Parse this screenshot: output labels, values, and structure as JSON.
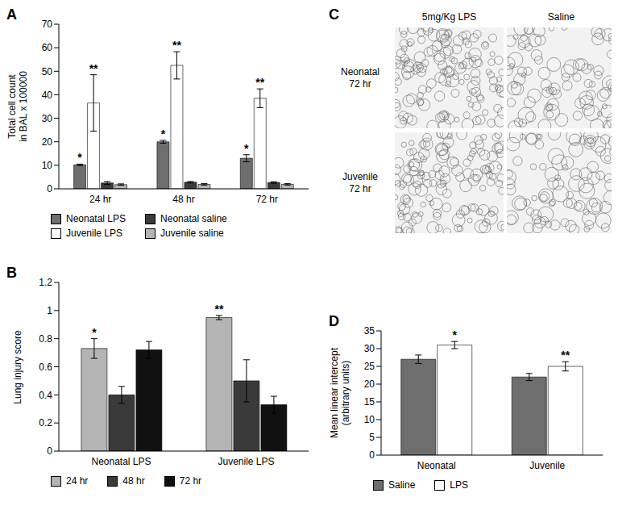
{
  "chart_data": [
    {
      "type": "bar",
      "title": "A",
      "y_label": "Total cell count in BAL x 100000",
      "categories": [
        "24 hr",
        "48 hr",
        "72 hr"
      ],
      "ylim": [
        0,
        70
      ],
      "yticks": [
        0,
        10,
        20,
        30,
        40,
        50,
        60,
        70
      ],
      "series": [
        {
          "name": "Neonatal LPS",
          "color": "#6e6e6e",
          "values": [
            10.2,
            20,
            13
          ],
          "errors": [
            0.3,
            0.6,
            1.5
          ],
          "annotations": [
            "*",
            "*",
            "*"
          ]
        },
        {
          "name": "Juvenile LPS",
          "color": "#ffffff",
          "values": [
            36.5,
            52.5,
            38.5
          ],
          "errors": [
            12,
            5.8,
            4
          ],
          "annotations": [
            "**",
            "**",
            "**"
          ]
        },
        {
          "name": "Neonatal saline",
          "color": "#3a3a3a",
          "values": [
            2.5,
            2.8,
            2.7
          ],
          "errors": [
            0.6,
            0.3,
            0.3
          ],
          "annotations": [
            null,
            null,
            null
          ]
        },
        {
          "name": "Juvenile saline",
          "color": "#b4b4b4",
          "values": [
            1.8,
            1.9,
            1.9
          ],
          "errors": [
            0.3,
            0.3,
            0.3
          ],
          "annotations": [
            null,
            null,
            null
          ]
        }
      ]
    },
    {
      "type": "image_grid",
      "title": "C",
      "columns": [
        "5mg/Kg LPS",
        "Saline"
      ],
      "rows": [
        "Neonatal 72 hr",
        "Juvenile 72 hr"
      ]
    },
    {
      "type": "bar",
      "title": "B",
      "y_label": "Lung injury score",
      "categories": [
        "Neonatal LPS",
        "Juvenile LPS"
      ],
      "ylim": [
        0,
        1.2
      ],
      "yticks": [
        0,
        0.2,
        0.4,
        0.6,
        0.8,
        1,
        1.2
      ],
      "series": [
        {
          "name": "24 hr",
          "color": "#b4b4b4",
          "values": [
            0.73,
            0.95
          ],
          "errors": [
            0.07,
            0.015
          ],
          "annotations": [
            "*",
            "**"
          ]
        },
        {
          "name": "48 hr",
          "color": "#3a3a3a",
          "values": [
            0.4,
            0.5
          ],
          "errors": [
            0.06,
            0.15
          ],
          "annotations": [
            null,
            null
          ]
        },
        {
          "name": "72 hr",
          "color": "#111111",
          "values": [
            0.72,
            0.33
          ],
          "errors": [
            0.06,
            0.06
          ],
          "annotations": [
            null,
            null
          ]
        }
      ]
    },
    {
      "type": "bar",
      "title": "D",
      "y_label": "Mean linear intercept (arbitrary units)",
      "categories": [
        "Neonatal",
        "Juvenile"
      ],
      "ylim": [
        0,
        35
      ],
      "yticks": [
        0,
        5,
        10,
        15,
        20,
        25,
        30,
        35
      ],
      "series": [
        {
          "name": "Saline",
          "color": "#6e6e6e",
          "values": [
            27,
            22
          ],
          "errors": [
            1.2,
            1.0
          ],
          "annotations": [
            null,
            null
          ]
        },
        {
          "name": "LPS",
          "color": "#ffffff",
          "values": [
            31,
            25
          ],
          "errors": [
            1.0,
            1.3
          ],
          "annotations": [
            "*",
            "**"
          ]
        }
      ]
    }
  ]
}
